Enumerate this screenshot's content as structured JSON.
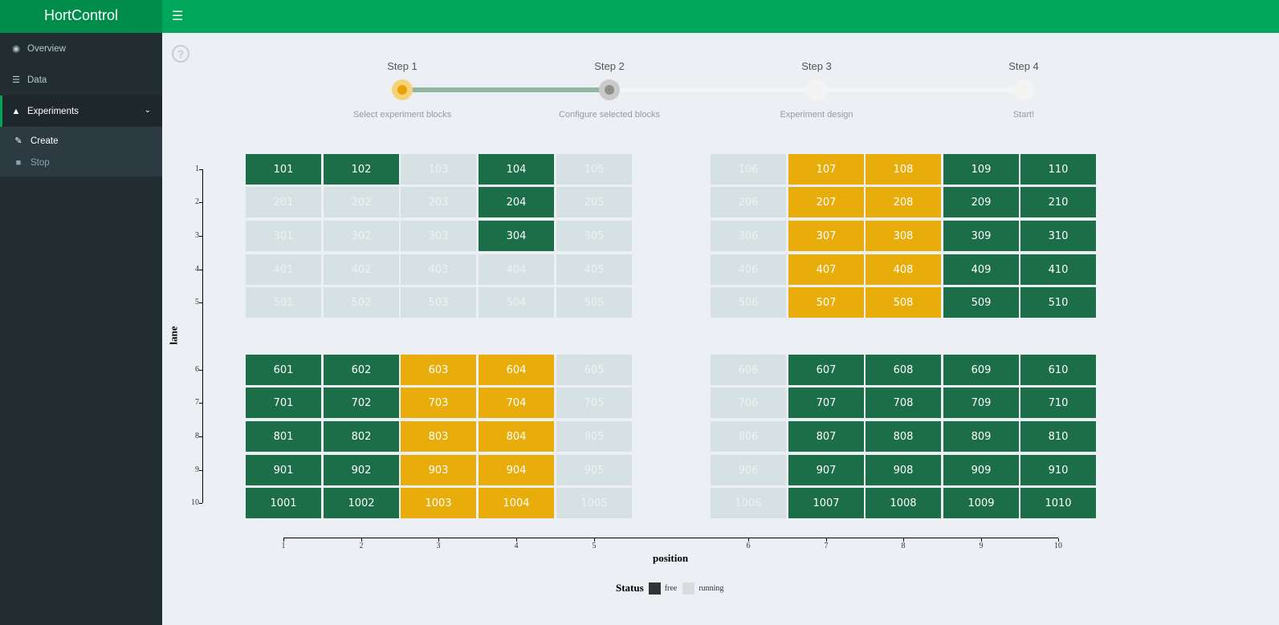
{
  "app": {
    "title": "HortControl"
  },
  "sidebar": {
    "items": [
      {
        "label": "Overview",
        "icon": "dashboard-icon"
      },
      {
        "label": "Data",
        "icon": "database-icon"
      },
      {
        "label": "Experiments",
        "icon": "flask-icon"
      }
    ],
    "subitems": [
      {
        "label": "Create",
        "icon": "magic-wand-icon"
      },
      {
        "label": "Stop",
        "icon": "stop-icon"
      }
    ]
  },
  "wizard": {
    "steps": [
      {
        "label": "Step 1",
        "desc": "Select experiment blocks",
        "state": "current"
      },
      {
        "label": "Step 2",
        "desc": "Configure selected blocks",
        "state": "next"
      },
      {
        "label": "Step 3",
        "desc": "Experiment design",
        "state": "todo"
      },
      {
        "label": "Step 4",
        "desc": "Start!",
        "state": "todo"
      }
    ]
  },
  "colors": {
    "free": "#1b6e47",
    "running": "#d5e1e2",
    "selected": "#e8ad0b",
    "accent": "#00a65a"
  },
  "chart_data": {
    "type": "heatmap",
    "xlabel": "position",
    "ylabel": "lane",
    "x_ticks": [
      "1",
      "2",
      "3",
      "4",
      "5",
      "6",
      "7",
      "8",
      "9",
      "10"
    ],
    "y_ticks": [
      "1",
      "2",
      "3",
      "4",
      "5",
      "6",
      "7",
      "8",
      "9",
      "10"
    ],
    "legend": {
      "title": "Status",
      "entries": [
        "free",
        "running"
      ]
    },
    "cells": [
      [
        "101",
        "F"
      ],
      [
        "102",
        "F"
      ],
      [
        "103",
        "R"
      ],
      [
        "104",
        "F"
      ],
      [
        "105",
        "R"
      ],
      [
        "106",
        "R"
      ],
      [
        "107",
        "S"
      ],
      [
        "108",
        "S"
      ],
      [
        "109",
        "F"
      ],
      [
        "110",
        "F"
      ],
      [
        "201",
        "R"
      ],
      [
        "202",
        "R"
      ],
      [
        "203",
        "R"
      ],
      [
        "204",
        "F"
      ],
      [
        "205",
        "R"
      ],
      [
        "206",
        "R"
      ],
      [
        "207",
        "S"
      ],
      [
        "208",
        "S"
      ],
      [
        "209",
        "F"
      ],
      [
        "210",
        "F"
      ],
      [
        "301",
        "R"
      ],
      [
        "302",
        "R"
      ],
      [
        "303",
        "R"
      ],
      [
        "304",
        "F"
      ],
      [
        "305",
        "R"
      ],
      [
        "306",
        "R"
      ],
      [
        "307",
        "S"
      ],
      [
        "308",
        "S"
      ],
      [
        "309",
        "F"
      ],
      [
        "310",
        "F"
      ],
      [
        "401",
        "R"
      ],
      [
        "402",
        "R"
      ],
      [
        "403",
        "R"
      ],
      [
        "404",
        "R"
      ],
      [
        "405",
        "R"
      ],
      [
        "406",
        "R"
      ],
      [
        "407",
        "S"
      ],
      [
        "408",
        "S"
      ],
      [
        "409",
        "F"
      ],
      [
        "410",
        "F"
      ],
      [
        "501",
        "R"
      ],
      [
        "502",
        "R"
      ],
      [
        "503",
        "R"
      ],
      [
        "504",
        "R"
      ],
      [
        "505",
        "R"
      ],
      [
        "506",
        "R"
      ],
      [
        "507",
        "S"
      ],
      [
        "508",
        "S"
      ],
      [
        "509",
        "F"
      ],
      [
        "510",
        "F"
      ],
      [
        "601",
        "F"
      ],
      [
        "602",
        "F"
      ],
      [
        "603",
        "S"
      ],
      [
        "604",
        "S"
      ],
      [
        "605",
        "R"
      ],
      [
        "606",
        "R"
      ],
      [
        "607",
        "F"
      ],
      [
        "608",
        "F"
      ],
      [
        "609",
        "F"
      ],
      [
        "610",
        "F"
      ],
      [
        "701",
        "F"
      ],
      [
        "702",
        "F"
      ],
      [
        "703",
        "S"
      ],
      [
        "704",
        "S"
      ],
      [
        "705",
        "R"
      ],
      [
        "706",
        "R"
      ],
      [
        "707",
        "F"
      ],
      [
        "708",
        "F"
      ],
      [
        "709",
        "F"
      ],
      [
        "710",
        "F"
      ],
      [
        "801",
        "F"
      ],
      [
        "802",
        "F"
      ],
      [
        "803",
        "S"
      ],
      [
        "804",
        "S"
      ],
      [
        "805",
        "R"
      ],
      [
        "806",
        "R"
      ],
      [
        "807",
        "F"
      ],
      [
        "808",
        "F"
      ],
      [
        "809",
        "F"
      ],
      [
        "810",
        "F"
      ],
      [
        "901",
        "F"
      ],
      [
        "902",
        "F"
      ],
      [
        "903",
        "S"
      ],
      [
        "904",
        "S"
      ],
      [
        "905",
        "R"
      ],
      [
        "906",
        "R"
      ],
      [
        "907",
        "F"
      ],
      [
        "908",
        "F"
      ],
      [
        "909",
        "F"
      ],
      [
        "910",
        "F"
      ],
      [
        "1001",
        "F"
      ],
      [
        "1002",
        "F"
      ],
      [
        "1003",
        "S"
      ],
      [
        "1004",
        "S"
      ],
      [
        "1005",
        "R"
      ],
      [
        "1006",
        "R"
      ],
      [
        "1007",
        "F"
      ],
      [
        "1008",
        "F"
      ],
      [
        "1009",
        "F"
      ],
      [
        "1010",
        "F"
      ]
    ]
  }
}
